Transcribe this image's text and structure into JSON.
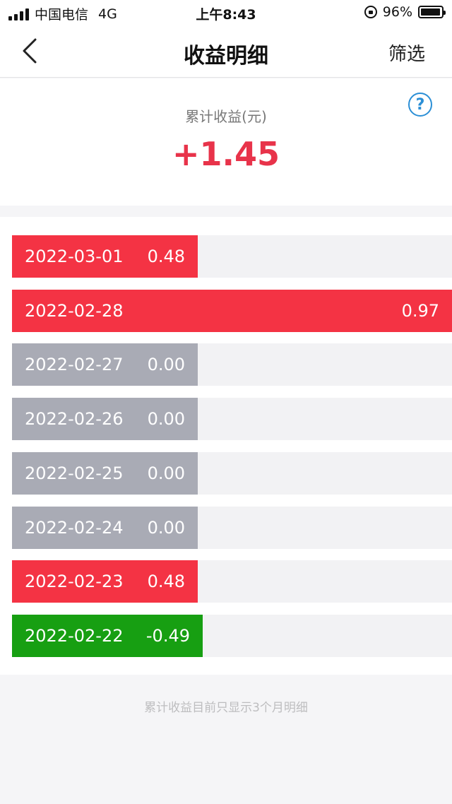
{
  "status_bar": {
    "carrier": "中国电信",
    "network": "4G",
    "time": "上午8:43",
    "battery": "96%",
    "battery_level": 0.96
  },
  "nav": {
    "title": "收益明细",
    "filter_label": "筛选"
  },
  "summary": {
    "label": "累计收益(元)",
    "value": "+1.45",
    "help_glyph": "?"
  },
  "rows": [
    {
      "date": "2022-03-01",
      "amount": "0.48",
      "value": 0.48,
      "type": "pos"
    },
    {
      "date": "2022-02-28",
      "amount": "0.97",
      "value": 0.97,
      "type": "pos"
    },
    {
      "date": "2022-02-27",
      "amount": "0.00",
      "value": 0.0,
      "type": "zero"
    },
    {
      "date": "2022-02-26",
      "amount": "0.00",
      "value": 0.0,
      "type": "zero"
    },
    {
      "date": "2022-02-25",
      "amount": "0.00",
      "value": 0.0,
      "type": "zero"
    },
    {
      "date": "2022-02-24",
      "amount": "0.00",
      "value": 0.0,
      "type": "zero"
    },
    {
      "date": "2022-02-23",
      "amount": "0.48",
      "value": 0.48,
      "type": "pos"
    },
    {
      "date": "2022-02-22",
      "amount": "-0.49",
      "value": -0.49,
      "type": "neg"
    }
  ],
  "colors": {
    "positive": "#f43344",
    "zero": "#a9abb5",
    "negative": "#179f12",
    "accent_red": "#e8334a",
    "help_blue": "#2b8fd6"
  },
  "footer_note": "累计收益目前只显示3个月明细"
}
